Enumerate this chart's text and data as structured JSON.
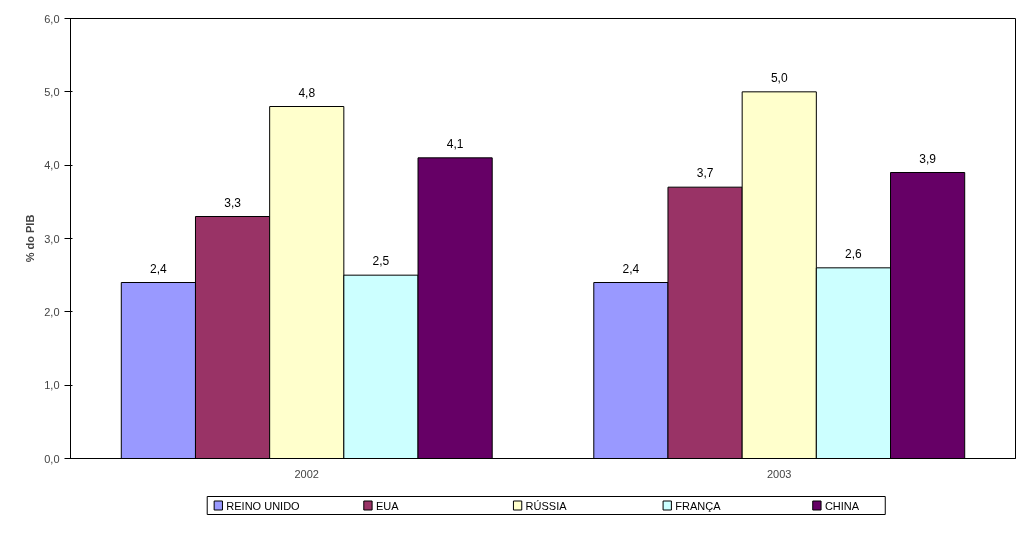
{
  "chart_data": {
    "type": "bar",
    "ylabel": "% do PIB",
    "categories": [
      "2002",
      "2003"
    ],
    "series": [
      {
        "name": "REINO UNIDO",
        "color": "#9999ff",
        "values": [
          2.4,
          2.4
        ],
        "value_labels": [
          "2,4",
          "2,4"
        ]
      },
      {
        "name": "EUA",
        "color": "#993366",
        "values": [
          3.3,
          3.7
        ],
        "value_labels": [
          "3,3",
          "3,7"
        ]
      },
      {
        "name": "RÚSSIA",
        "color": "#ffffcc",
        "values": [
          4.8,
          5.0
        ],
        "value_labels": [
          "4,8",
          "5,0"
        ]
      },
      {
        "name": "FRANÇA",
        "color": "#ccffff",
        "values": [
          2.5,
          2.6
        ],
        "value_labels": [
          "2,5",
          "2,6"
        ]
      },
      {
        "name": "CHINA",
        "color": "#660066",
        "values": [
          4.1,
          3.9
        ],
        "value_labels": [
          "4,1",
          "3,9"
        ]
      }
    ],
    "ylim": [
      0,
      6
    ],
    "yticks": [
      {
        "value": 0,
        "label": "0,0"
      },
      {
        "value": 1,
        "label": "1,0"
      },
      {
        "value": 2,
        "label": "2,0"
      },
      {
        "value": 3,
        "label": "3,0"
      },
      {
        "value": 4,
        "label": "4,0"
      },
      {
        "value": 5,
        "label": "5,0"
      },
      {
        "value": 6,
        "label": "6,0"
      }
    ],
    "grid": false,
    "legend": "bottom"
  }
}
